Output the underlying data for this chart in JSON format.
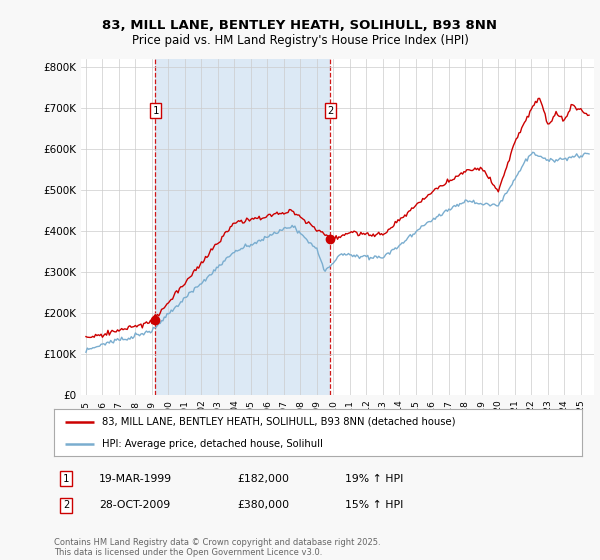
{
  "title1": "83, MILL LANE, BENTLEY HEATH, SOLIHULL, B93 8NN",
  "title2": "Price paid vs. HM Land Registry's House Price Index (HPI)",
  "legend_line1": "83, MILL LANE, BENTLEY HEATH, SOLIHULL, B93 8NN (detached house)",
  "legend_line2": "HPI: Average price, detached house, Solihull",
  "sale1_date": "19-MAR-1999",
  "sale1_price": "£182,000",
  "sale1_hpi": "19% ↑ HPI",
  "sale2_date": "28-OCT-2009",
  "sale2_price": "£380,000",
  "sale2_hpi": "15% ↑ HPI",
  "footer": "Contains HM Land Registry data © Crown copyright and database right 2025.\nThis data is licensed under the Open Government Licence v3.0.",
  "red_color": "#cc0000",
  "blue_color": "#7aadcf",
  "highlight_color": "#dce9f5",
  "bg_color": "#ffffff",
  "grid_color": "#cccccc",
  "sale1_year": 1999.21,
  "sale1_value": 182000,
  "sale2_year": 2009.82,
  "sale2_value": 380000,
  "ylim": [
    0,
    820000
  ],
  "yticks": [
    0,
    100000,
    200000,
    300000,
    400000,
    500000,
    600000,
    700000,
    800000
  ],
  "xlim_left": 1994.7,
  "xlim_right": 2025.8
}
